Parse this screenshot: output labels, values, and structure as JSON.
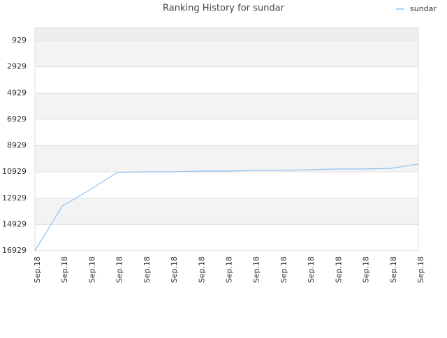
{
  "chart_data": {
    "type": "line",
    "title": "Ranking History for sundar",
    "categories": [
      "Sep.18",
      "Sep.18",
      "Sep.18",
      "Sep.18",
      "Sep.18",
      "Sep.18",
      "Sep.18",
      "Sep.18",
      "Sep.18",
      "Sep.18",
      "Sep.18",
      "Sep.18",
      "Sep.18",
      "Sep.18",
      "Sep.18"
    ],
    "series": [
      {
        "name": "sundar",
        "color": "#90c2f0",
        "values": [
          16929,
          13528,
          12305,
          10976,
          10923,
          10923,
          10870,
          10870,
          10817,
          10817,
          10764,
          10710,
          10710,
          10657,
          10338
        ]
      }
    ],
    "ylim": [
      16929,
      -28
    ],
    "yticks": [
      929,
      2929,
      4929,
      6929,
      8929,
      10929,
      12929,
      14929,
      16929
    ],
    "grid": true,
    "legend": "top-right"
  }
}
